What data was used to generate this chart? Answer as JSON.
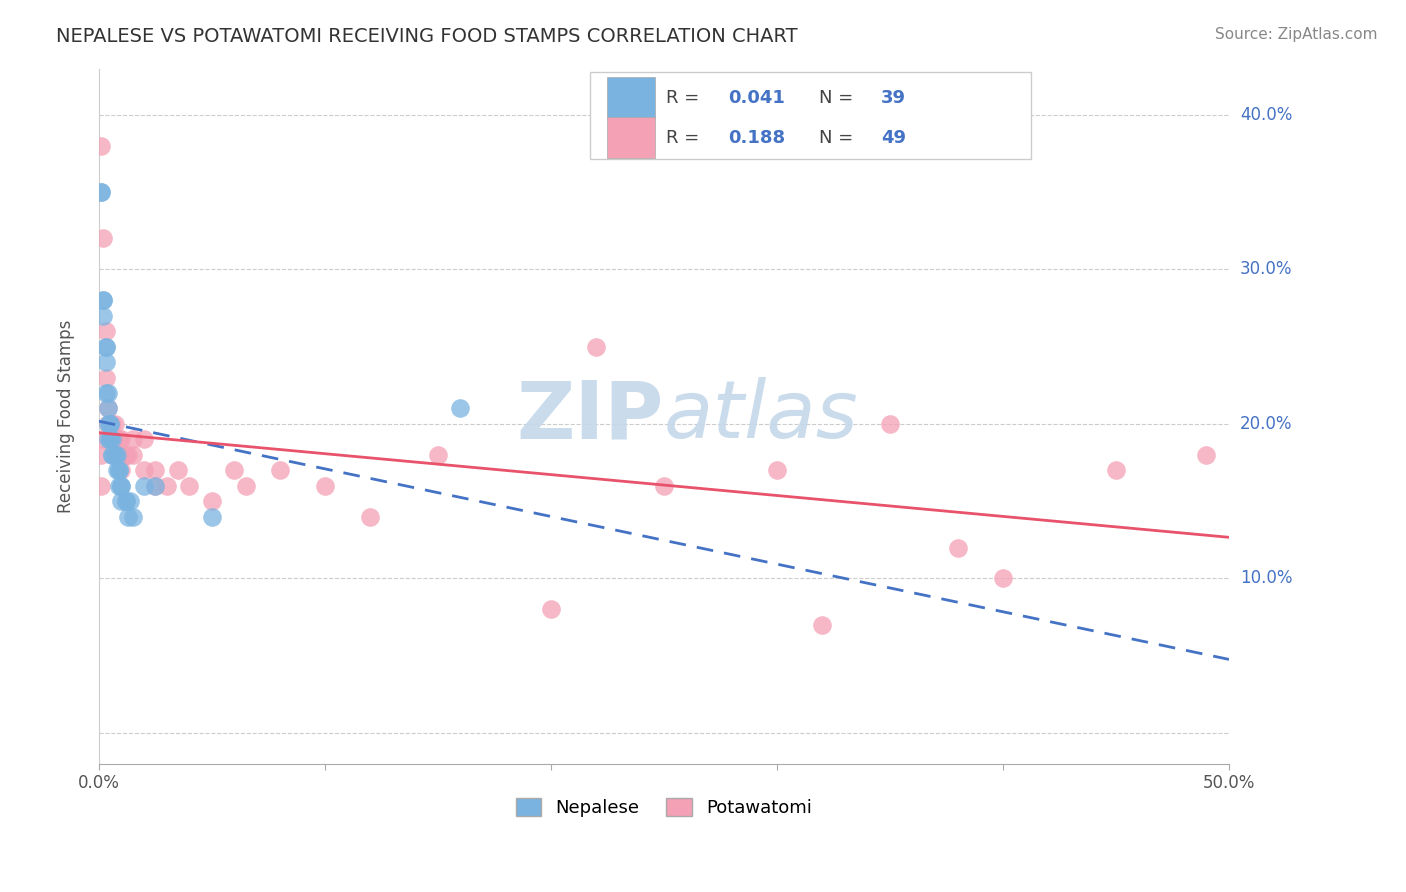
{
  "title": "NEPALESE VS POTAWATOMI RECEIVING FOOD STAMPS CORRELATION CHART",
  "source": "Source: ZipAtlas.com",
  "ylabel": "Receiving Food Stamps",
  "xlim": [
    0.0,
    0.5
  ],
  "ylim": [
    -0.02,
    0.43
  ],
  "yticks": [
    0.0,
    0.1,
    0.2,
    0.3,
    0.4
  ],
  "ytick_labels": [
    "",
    "10.0%",
    "20.0%",
    "30.0%",
    "40.0%"
  ],
  "xticks": [
    0.0,
    0.1,
    0.2,
    0.3,
    0.4,
    0.5
  ],
  "xtick_labels": [
    "0.0%",
    "",
    "",
    "",
    "",
    "50.0%"
  ],
  "nepalese_color": "#7ab3e0",
  "potawatomi_color": "#f4a0b5",
  "nepalese_line_color": "#4472c4",
  "potawatomi_line_color": "#e8526a",
  "watermark_color": "#c5d8ea",
  "grid_color": "#cccccc",
  "title_color": "#333333",
  "right_ytick_color": "#4472c4",
  "nepalese_x": [
    0.001,
    0.001,
    0.002,
    0.002,
    0.002,
    0.003,
    0.003,
    0.003,
    0.003,
    0.004,
    0.004,
    0.004,
    0.004,
    0.005,
    0.005,
    0.005,
    0.005,
    0.006,
    0.006,
    0.006,
    0.007,
    0.007,
    0.008,
    0.008,
    0.009,
    0.009,
    0.009,
    0.01,
    0.01,
    0.01,
    0.012,
    0.012,
    0.013,
    0.014,
    0.015,
    0.02,
    0.025,
    0.05,
    0.16
  ],
  "nepalese_y": [
    0.35,
    0.35,
    0.28,
    0.28,
    0.27,
    0.25,
    0.25,
    0.24,
    0.22,
    0.22,
    0.21,
    0.2,
    0.19,
    0.2,
    0.2,
    0.19,
    0.19,
    0.19,
    0.18,
    0.18,
    0.18,
    0.18,
    0.18,
    0.17,
    0.17,
    0.17,
    0.16,
    0.16,
    0.16,
    0.15,
    0.15,
    0.15,
    0.14,
    0.15,
    0.14,
    0.16,
    0.16,
    0.14,
    0.21
  ],
  "potawatomi_x": [
    0.001,
    0.001,
    0.001,
    0.002,
    0.002,
    0.003,
    0.003,
    0.004,
    0.004,
    0.005,
    0.005,
    0.006,
    0.006,
    0.007,
    0.007,
    0.008,
    0.008,
    0.009,
    0.01,
    0.01,
    0.01,
    0.012,
    0.013,
    0.015,
    0.015,
    0.02,
    0.02,
    0.025,
    0.025,
    0.03,
    0.035,
    0.04,
    0.05,
    0.06,
    0.065,
    0.08,
    0.1,
    0.12,
    0.15,
    0.2,
    0.22,
    0.25,
    0.3,
    0.32,
    0.35,
    0.38,
    0.4,
    0.45,
    0.49
  ],
  "potawatomi_y": [
    0.38,
    0.18,
    0.16,
    0.32,
    0.19,
    0.26,
    0.23,
    0.21,
    0.2,
    0.2,
    0.19,
    0.2,
    0.19,
    0.2,
    0.19,
    0.18,
    0.18,
    0.19,
    0.18,
    0.17,
    0.19,
    0.18,
    0.18,
    0.19,
    0.18,
    0.19,
    0.17,
    0.17,
    0.16,
    0.16,
    0.17,
    0.16,
    0.15,
    0.17,
    0.16,
    0.17,
    0.16,
    0.14,
    0.18,
    0.08,
    0.25,
    0.16,
    0.17,
    0.07,
    0.2,
    0.12,
    0.1,
    0.17,
    0.18
  ]
}
